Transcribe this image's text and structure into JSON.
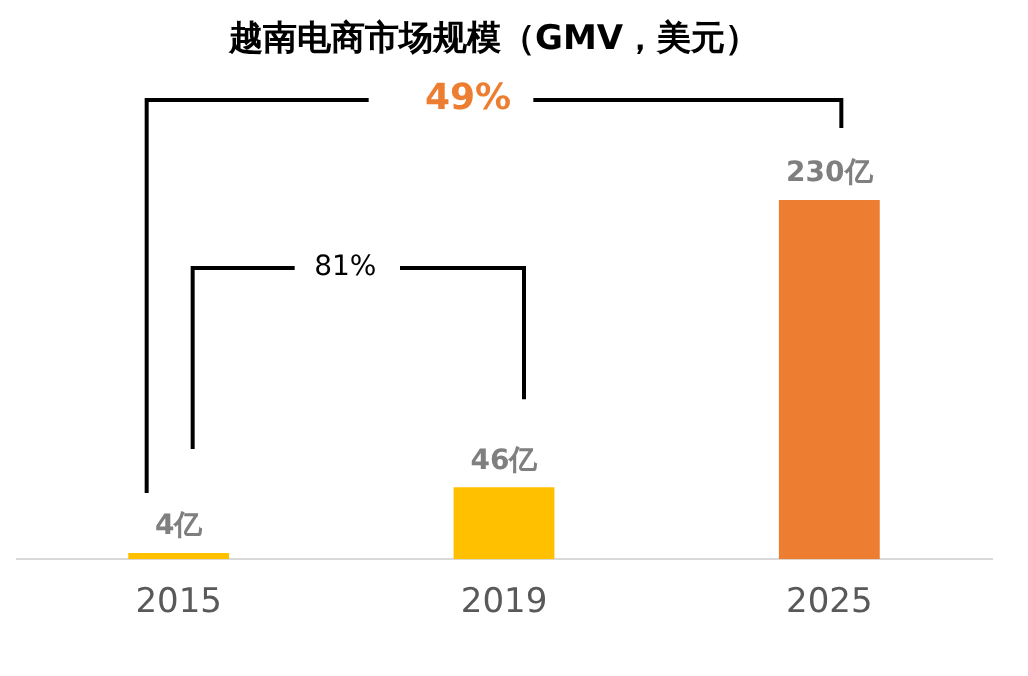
{
  "chart_data": {
    "type": "bar",
    "title": "越南电商市场规模（GMV，美元）",
    "categories": [
      "2015",
      "2019",
      "2025"
    ],
    "values": [
      4,
      46,
      230
    ],
    "colors": [
      "#ffc000",
      "#ffc000",
      "#ed7d31"
    ],
    "value_labels": [
      "4亿",
      "46亿",
      "230亿"
    ],
    "annotations": [
      "49%",
      "81%"
    ],
    "grid": false,
    "legend": false
  }
}
